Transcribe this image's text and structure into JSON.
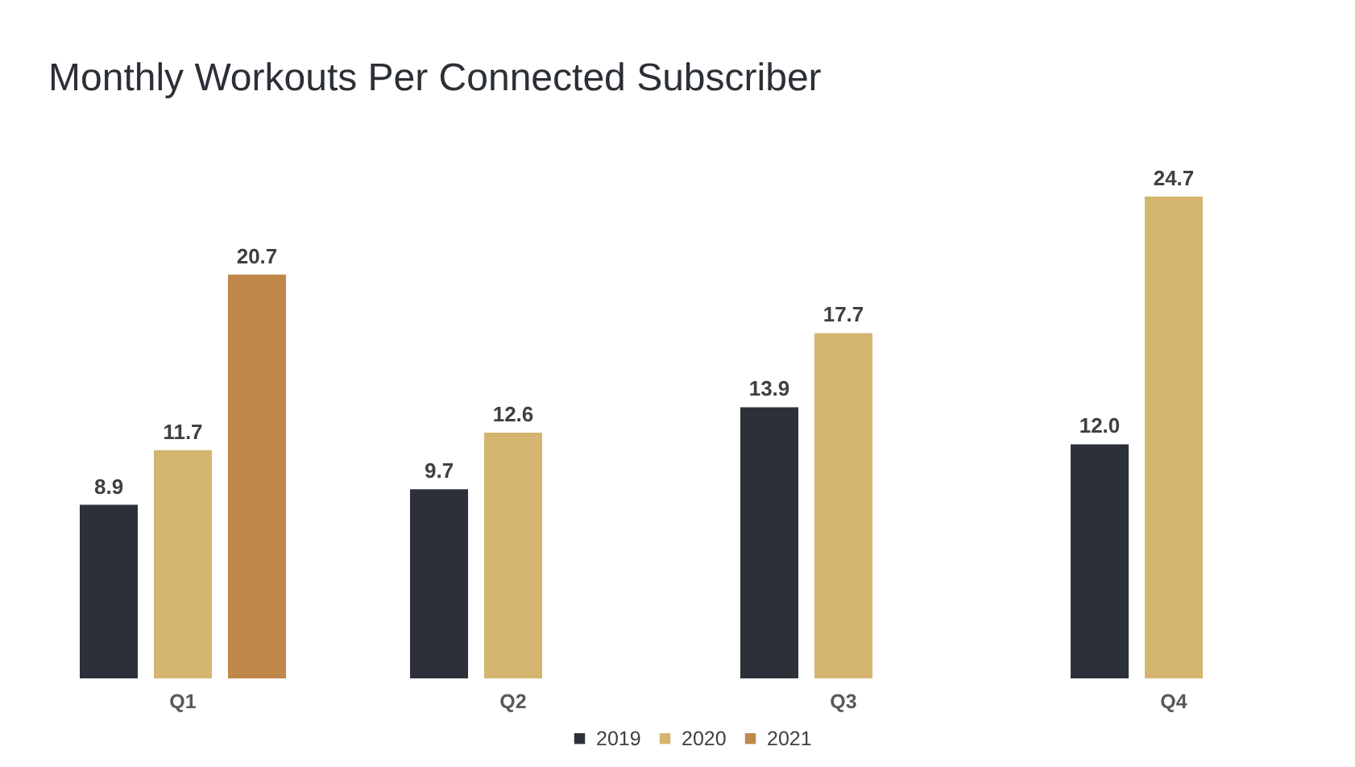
{
  "chart_data": {
    "type": "bar",
    "title": "Monthly Workouts Per Connected Subscriber",
    "categories": [
      "Q1",
      "Q2",
      "Q3",
      "Q4"
    ],
    "series": [
      {
        "name": "2019",
        "color": "#2c3038",
        "values": [
          8.9,
          9.7,
          13.9,
          12.0
        ],
        "value_labels": [
          "8.9",
          "9.7",
          "13.9",
          "12.0"
        ]
      },
      {
        "name": "2020",
        "color": "#d4b56f",
        "values": [
          11.7,
          12.6,
          17.7,
          24.7
        ],
        "value_labels": [
          "11.7",
          "12.6",
          "17.7",
          "24.7"
        ]
      },
      {
        "name": "2021",
        "color": "#bf884a",
        "values": [
          20.7,
          null,
          null,
          null
        ],
        "value_labels": [
          "20.7",
          null,
          null,
          null
        ]
      }
    ],
    "legend": "bottom",
    "grid": false,
    "tick_labels": "x"
  }
}
